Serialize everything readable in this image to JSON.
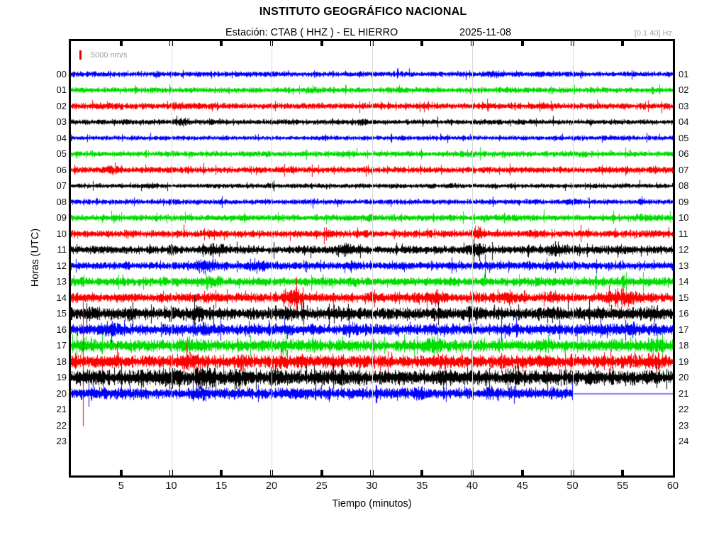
{
  "header": {
    "title": "INSTITUTO GEOGRÁFICO NACIONAL",
    "station_label": "Estación:  CTAB ( HHZ ) - EL HIERRO",
    "date": "2025-11-08",
    "filter": "[0.1 40] Hz"
  },
  "scale": {
    "label": "5000 nm/s"
  },
  "axes": {
    "xlabel": "Tiempo (minutos)",
    "ylabel": "Horas (UTC)",
    "x_ticks": [
      5,
      10,
      15,
      20,
      25,
      30,
      35,
      40,
      45,
      50,
      55,
      60
    ],
    "left_hour_labels": [
      "00",
      "01",
      "02",
      "03",
      "04",
      "05",
      "06",
      "07",
      "08",
      "09",
      "10",
      "11",
      "12",
      "13",
      "14",
      "15",
      "16",
      "17",
      "18",
      "19",
      "20",
      "21",
      "22",
      "23"
    ],
    "right_hour_labels": [
      "01",
      "02",
      "03",
      "04",
      "05",
      "06",
      "07",
      "08",
      "09",
      "10",
      "11",
      "12",
      "13",
      "14",
      "15",
      "16",
      "17",
      "18",
      "19",
      "20",
      "21",
      "22",
      "23",
      "24"
    ]
  },
  "chart_data": {
    "type": "line",
    "subtype": "helicorder-seismogram",
    "title": "INSTITUTO GEOGRÁFICO NACIONAL",
    "station": "CTAB",
    "channel": "HHZ",
    "location": "EL HIERRO",
    "date": "2025-11-08",
    "filter_band_hz": [
      0.1,
      40
    ],
    "amplitude_scale_nm_s": 5000,
    "xlabel": "Tiempo (minutos)",
    "ylabel": "Horas (UTC)",
    "x_range_minutes": [
      0,
      60
    ],
    "grid_minutes": [
      10,
      20,
      30,
      40,
      50
    ],
    "grid_color": "#d9d9d9",
    "color_cycle": [
      "blue",
      "green",
      "red",
      "black"
    ],
    "color_map": {
      "blue": "#0000ff",
      "green": "#00dc00",
      "red": "#ff0000",
      "black": "#000000"
    },
    "empty_hours": [
      21,
      22,
      23
    ],
    "rows": [
      {
        "hour": 0,
        "color": "blue",
        "base": 3.4,
        "end": 60,
        "spikes": [],
        "bursts": [
          [
            20,
            1.5,
            4.2
          ],
          [
            42,
            2,
            4.8
          ],
          [
            47,
            1.5,
            4.4
          ]
        ]
      },
      {
        "hour": 1,
        "color": "green",
        "base": 3.5,
        "end": 60,
        "spikes": [],
        "bursts": [
          [
            24,
            1.5,
            4.8
          ],
          [
            33,
            1,
            4.2
          ],
          [
            44,
            1.5,
            4.4
          ]
        ]
      },
      {
        "hour": 2,
        "color": "red",
        "base": 3.9,
        "end": 60,
        "spikes": [],
        "bursts": [
          [
            3,
            1,
            5
          ],
          [
            11,
            1.5,
            5.5
          ],
          [
            23,
            1,
            4.9
          ],
          [
            41,
            1,
            5.5
          ],
          [
            47,
            1,
            5
          ],
          [
            55,
            1,
            4.9
          ]
        ]
      },
      {
        "hour": 3,
        "color": "black",
        "base": 3.3,
        "end": 60,
        "spikes": [],
        "bursts": [
          [
            11,
            1.5,
            5.5
          ],
          [
            22,
            1,
            4.3
          ],
          [
            29,
            1.5,
            4.6
          ]
        ]
      },
      {
        "hour": 4,
        "color": "blue",
        "base": 2.9,
        "end": 60,
        "spikes": [],
        "bursts": [
          [
            25,
            1,
            4.1
          ],
          [
            33,
            1,
            3.9
          ],
          [
            54,
            1,
            4.1
          ]
        ]
      },
      {
        "hour": 5,
        "color": "green",
        "base": 3.5,
        "end": 60,
        "spikes": [],
        "bursts": [
          [
            27,
            1.5,
            4.6
          ],
          [
            40,
            1,
            4.1
          ]
        ]
      },
      {
        "hour": 6,
        "color": "red",
        "base": 3.9,
        "end": 60,
        "spikes": [],
        "bursts": [
          [
            4,
            1.5,
            6.6
          ],
          [
            8,
            1,
            5.1
          ],
          [
            22,
            1.5,
            5.1
          ],
          [
            58,
            1,
            5.1
          ]
        ]
      },
      {
        "hour": 7,
        "color": "black",
        "base": 2.9,
        "end": 60,
        "spikes": [],
        "bursts": [
          [
            8,
            1,
            4.6
          ],
          [
            20,
            1,
            4.1
          ],
          [
            38,
            1,
            4.3
          ],
          [
            55,
            1,
            4.1
          ]
        ]
      },
      {
        "hour": 8,
        "color": "blue",
        "base": 3.3,
        "end": 60,
        "spikes": [],
        "bursts": [
          [
            15,
            1,
            4.3
          ],
          [
            50,
            1.5,
            4.6
          ],
          [
            57,
            1,
            4.6
          ]
        ]
      },
      {
        "hour": 9,
        "color": "green",
        "base": 4.0,
        "end": 60,
        "spikes": [],
        "bursts": [
          [
            14,
            1,
            5.1
          ],
          [
            30,
            1.5,
            5.1
          ],
          [
            44,
            1,
            5.1
          ],
          [
            57,
            1.5,
            5.6
          ]
        ]
      },
      {
        "hour": 10,
        "color": "red",
        "base": 4.5,
        "end": 60,
        "spikes": [],
        "bursts": [
          [
            6,
            1,
            5.6
          ],
          [
            14,
            1.5,
            6.6
          ],
          [
            21,
            1,
            5.6
          ],
          [
            25.5,
            1,
            6.1
          ],
          [
            40.5,
            0.5,
            12
          ],
          [
            41,
            1,
            7.1
          ],
          [
            46,
            1,
            6.1
          ],
          [
            51,
            1,
            6.1
          ],
          [
            58,
            1,
            5.6
          ]
        ]
      },
      {
        "hour": 11,
        "color": "black",
        "base": 5.0,
        "end": 60,
        "spikes": [],
        "bursts": [
          [
            10,
            1,
            6.6
          ],
          [
            14.5,
            2,
            9.1
          ],
          [
            27.5,
            2,
            9.6
          ],
          [
            40.5,
            1.2,
            12.1
          ],
          [
            48.5,
            1.5,
            10.1
          ],
          [
            55,
            1,
            7.1
          ]
        ]
      },
      {
        "hour": 12,
        "color": "blue",
        "base": 5.0,
        "end": 60,
        "spikes": [],
        "bursts": [
          [
            13.5,
            1.5,
            10.6
          ],
          [
            18.5,
            1.5,
            9.1
          ],
          [
            28,
            1,
            6.6
          ],
          [
            41,
            1,
            7.1
          ],
          [
            47,
            1,
            6.1
          ]
        ]
      },
      {
        "hour": 13,
        "color": "green",
        "base": 5.5,
        "end": 60,
        "spikes": [
          [
            0.3,
            9,
            6
          ]
        ],
        "bursts": [
          [
            5,
            1,
            7.1
          ],
          [
            14,
            1.5,
            10.1
          ],
          [
            28,
            1,
            7.1
          ],
          [
            36,
            1,
            7.1
          ],
          [
            47,
            1,
            7.1
          ],
          [
            55,
            1.5,
            7.6
          ]
        ]
      },
      {
        "hour": 14,
        "color": "red",
        "base": 6.0,
        "end": 60,
        "spikes": [],
        "bursts": [
          [
            13.5,
            1,
            8.1
          ],
          [
            22,
            1.5,
            12.6
          ],
          [
            30,
            1,
            8.1
          ],
          [
            36.5,
            1.5,
            11.1
          ],
          [
            40,
            1,
            9.1
          ],
          [
            44,
            1.5,
            10.1
          ],
          [
            48,
            1,
            9.1
          ],
          [
            55,
            2,
            13.6
          ]
        ]
      },
      {
        "hour": 15,
        "color": "black",
        "base": 7.5,
        "end": 60,
        "spikes": [],
        "bursts": [
          [
            2,
            1,
            11.1
          ],
          [
            6,
            1.5,
            10.6
          ],
          [
            10,
            1,
            10.6
          ],
          [
            12.5,
            1,
            11.1
          ],
          [
            22,
            2,
            10.6
          ],
          [
            27,
            1.5,
            10.1
          ],
          [
            40,
            1.5,
            11.1
          ],
          [
            48,
            2,
            10.1
          ],
          [
            58,
            1.5,
            11.6
          ]
        ]
      },
      {
        "hour": 16,
        "color": "blue",
        "base": 7.0,
        "end": 60,
        "spikes": [],
        "bursts": [
          [
            4,
            1.5,
            10.6
          ],
          [
            13,
            1.5,
            10.1
          ],
          [
            20,
            1,
            8.6
          ],
          [
            28,
            1.5,
            9.1
          ],
          [
            36,
            1,
            8.6
          ],
          [
            44,
            1.5,
            9.6
          ],
          [
            56,
            2,
            11.6
          ]
        ]
      },
      {
        "hour": 17,
        "color": "green",
        "base": 7.5,
        "end": 60,
        "spikes": [
          [
            0.15,
            16,
            10
          ]
        ],
        "bursts": [
          [
            1,
            1,
            10.1
          ],
          [
            12,
            2,
            11.6
          ],
          [
            24,
            1,
            9.1
          ],
          [
            36,
            1.5,
            12.1
          ],
          [
            47,
            1.5,
            9.6
          ],
          [
            58,
            1,
            9.6
          ]
        ]
      },
      {
        "hour": 18,
        "color": "red",
        "base": 8.0,
        "end": 60,
        "spikes": [
          [
            1.2,
            87,
            91
          ],
          [
            4.6,
            26,
            6
          ]
        ],
        "bursts": [
          [
            12,
            2,
            12.6
          ],
          [
            17,
            1.5,
            11.1
          ],
          [
            23,
            1.5,
            10.1
          ],
          [
            30,
            1.5,
            10.1
          ],
          [
            37,
            1.5,
            10.1
          ],
          [
            43,
            1,
            9.6
          ],
          [
            47,
            1.5,
            10.1
          ],
          [
            58,
            1.5,
            11.1
          ]
        ]
      },
      {
        "hour": 19,
        "color": "black",
        "base": 9.0,
        "end": 60,
        "spikes": [],
        "bursts": [
          [
            3,
            1,
            11.1
          ],
          [
            7,
            1.5,
            12.1
          ],
          [
            10,
            2,
            13.6
          ],
          [
            13.5,
            2.5,
            14.6
          ],
          [
            17,
            1.5,
            12.6
          ],
          [
            21,
            1.5,
            11.6
          ],
          [
            27,
            1.5,
            10.6
          ],
          [
            33,
            1,
            10.6
          ],
          [
            37,
            1.5,
            11.6
          ],
          [
            44,
            1.5,
            10.6
          ],
          [
            52,
            1.5,
            10.6
          ],
          [
            58,
            1,
            10.6
          ]
        ]
      },
      {
        "hour": 20,
        "color": "blue",
        "base": 7.0,
        "end": 50,
        "spikes": [],
        "bursts": [
          [
            3,
            1,
            8.6
          ],
          [
            13,
            1.5,
            10.1
          ],
          [
            22,
            1.5,
            9.1
          ],
          [
            28,
            1,
            8.6
          ],
          [
            35,
            1.5,
            9.1
          ],
          [
            42,
            1.5,
            9.1
          ],
          [
            48,
            1,
            8.6
          ]
        ]
      }
    ]
  }
}
